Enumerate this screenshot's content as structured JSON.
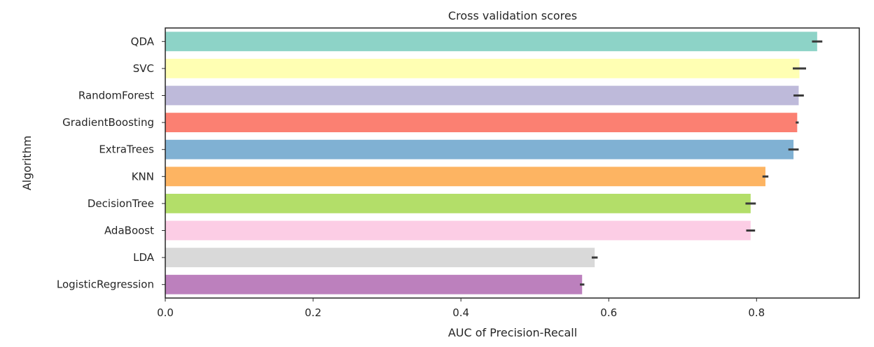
{
  "chart_data": {
    "type": "bar",
    "orientation": "horizontal",
    "title": "Cross validation scores",
    "xlabel": "AUC of Precision-Recall",
    "ylabel": "Algorithm",
    "categories": [
      "QDA",
      "SVC",
      "RandomForest",
      "GradientBoosting",
      "ExtraTrees",
      "KNN",
      "DecisionTree",
      "AdaBoost",
      "LDA",
      "LogisticRegression"
    ],
    "values": [
      0.882,
      0.858,
      0.857,
      0.855,
      0.85,
      0.812,
      0.792,
      0.792,
      0.581,
      0.564
    ],
    "error_bars": [
      0.007,
      0.009,
      0.007,
      0.002,
      0.007,
      0.004,
      0.007,
      0.006,
      0.004,
      0.003
    ],
    "colors": [
      "#8dd3c7",
      "#ffffb3",
      "#bebada",
      "#fb8072",
      "#80b1d3",
      "#fdb462",
      "#b3de69",
      "#fccde5",
      "#d9d9d9",
      "#bc80bd"
    ],
    "xlim": [
      0,
      0.939
    ],
    "xticks": [
      "0.0",
      "0.2",
      "0.4",
      "0.6",
      "0.8"
    ],
    "grid": false,
    "legend": "none"
  }
}
